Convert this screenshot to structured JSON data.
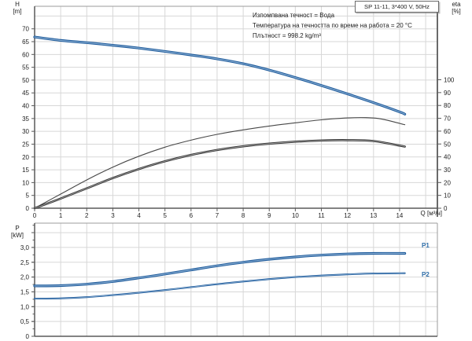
{
  "header": {
    "title": "SP 11-11, 3*400 V, 50Hz"
  },
  "annotations": [
    "Изпомпвана течност = Вода",
    "Температура на течността по време на работа = 20 °C",
    "Плътност = 998.2 kg/m³"
  ],
  "axes": {
    "h_symbol": "H",
    "h_unit": "[m]",
    "eta_symbol": "eta",
    "eta_unit": "[%]",
    "p_symbol": "P",
    "p_unit": "[kW]",
    "q_label": "Q [м³/ч]"
  },
  "colors": {
    "curve_blue": "#1d5a9b",
    "curve_blue_light": "#8fb2d4",
    "curve_black": "#333333",
    "curve_black_light": "#ababab",
    "grid": "#d7d7d7",
    "frame": "#9b9b9b",
    "axis_dark": "#5a5a5a",
    "text": "#222222",
    "label_blue": "#2d6da8"
  },
  "chart_data": [
    {
      "type": "line",
      "title": "SP 11-11, 3*400 V, 50Hz",
      "x_axis": {
        "label": "Q [м³/ч]",
        "tick_values": [
          0,
          1,
          2,
          3,
          4,
          5,
          6,
          7,
          8,
          9,
          10,
          11,
          12,
          13,
          14
        ],
        "grid_values": [
          1,
          2,
          3,
          4,
          5,
          6,
          7,
          8,
          9,
          10,
          11,
          12,
          13,
          14,
          15
        ],
        "range": [
          0,
          15.45
        ]
      },
      "y_left": {
        "label": "H [m]",
        "tick_values": [
          0,
          5,
          10,
          15,
          20,
          25,
          30,
          35,
          40,
          45,
          50,
          55,
          60,
          65,
          70
        ],
        "grid_values": [
          5,
          10,
          15,
          20,
          25,
          30,
          35,
          40,
          45,
          50,
          55,
          60,
          65,
          70,
          75
        ],
        "range": [
          0,
          78.8
        ]
      },
      "y_right": {
        "label": "eta [%]",
        "tick_values": [
          0,
          10,
          20,
          30,
          40,
          50,
          60,
          70,
          80,
          90,
          100
        ],
        "range": [
          0,
          157.2
        ]
      },
      "legend": "none",
      "series": [
        {
          "name": "H",
          "axis": "left",
          "style": "blue-thick",
          "points": [
            [
              0,
              66.8
            ],
            [
              1,
              65.5
            ],
            [
              2,
              64.6
            ],
            [
              3,
              63.6
            ],
            [
              4,
              62.5
            ],
            [
              5,
              61.2
            ],
            [
              6,
              59.8
            ],
            [
              7,
              58.3
            ],
            [
              8,
              56.4
            ],
            [
              9,
              53.9
            ],
            [
              10,
              51.0
            ],
            [
              11,
              47.9
            ],
            [
              12,
              44.6
            ],
            [
              13,
              41.2
            ],
            [
              14,
              37.6
            ],
            [
              14.2,
              36.7
            ]
          ]
        },
        {
          "name": "eta pump",
          "axis": "right",
          "style": "black-thin",
          "points": [
            [
              0,
              0
            ],
            [
              1,
              11
            ],
            [
              2,
              22
            ],
            [
              3,
              32
            ],
            [
              4,
              40.5
            ],
            [
              5,
              47.5
            ],
            [
              6,
              53
            ],
            [
              7,
              57.5
            ],
            [
              8,
              61
            ],
            [
              9,
              64
            ],
            [
              10,
              66.5
            ],
            [
              11,
              68.8
            ],
            [
              12,
              70.3
            ],
            [
              12.7,
              70.5
            ],
            [
              13.3,
              69.5
            ],
            [
              14.2,
              65
            ]
          ]
        },
        {
          "name": "eta pump motor",
          "axis": "right",
          "style": "black-thick",
          "points": [
            [
              0,
              0
            ],
            [
              1,
              7.5
            ],
            [
              2,
              15.5
            ],
            [
              3,
              23.5
            ],
            [
              4,
              30.5
            ],
            [
              5,
              36.5
            ],
            [
              6,
              41.5
            ],
            [
              7,
              45.3
            ],
            [
              8,
              48.2
            ],
            [
              9,
              50.3
            ],
            [
              10,
              51.8
            ],
            [
              11,
              52.7
            ],
            [
              12,
              53
            ],
            [
              13,
              52.3
            ],
            [
              14.2,
              48
            ]
          ]
        }
      ]
    },
    {
      "type": "line",
      "title": "",
      "x_axis": {
        "label": "",
        "grid_values": [
          1,
          2,
          3,
          4,
          5,
          6,
          7,
          8,
          9,
          10,
          11,
          12,
          13,
          14,
          15
        ],
        "range": [
          0,
          15.45
        ]
      },
      "y_left": {
        "label": "P [kW]",
        "tick_values": [
          0,
          0.5,
          1,
          1.5,
          2,
          2.5,
          3
        ],
        "tick_labels": [
          "0",
          "0,5",
          "1,0",
          "1,5",
          "2,0",
          "2,5",
          "3,0"
        ],
        "minor_step": 0.25,
        "grid_values": [
          0.5,
          1,
          1.5,
          2,
          2.5,
          3,
          3.5
        ],
        "range": [
          0,
          3.82
        ]
      },
      "series": [
        {
          "name": "P1",
          "label": "P1",
          "style": "blue-thick",
          "points": [
            [
              0,
              1.7
            ],
            [
              1,
              1.71
            ],
            [
              2,
              1.76
            ],
            [
              3,
              1.85
            ],
            [
              4,
              1.97
            ],
            [
              5,
              2.1
            ],
            [
              6,
              2.24
            ],
            [
              7,
              2.38
            ],
            [
              8,
              2.5
            ],
            [
              9,
              2.6
            ],
            [
              10,
              2.68
            ],
            [
              11,
              2.74
            ],
            [
              12,
              2.78
            ],
            [
              13,
              2.8
            ],
            [
              14.2,
              2.8
            ]
          ]
        },
        {
          "name": "P2",
          "label": "P2",
          "style": "blue-thin",
          "points": [
            [
              0,
              1.27
            ],
            [
              1,
              1.28
            ],
            [
              2,
              1.32
            ],
            [
              3,
              1.39
            ],
            [
              4,
              1.47
            ],
            [
              5,
              1.56
            ],
            [
              6,
              1.66
            ],
            [
              7,
              1.76
            ],
            [
              8,
              1.85
            ],
            [
              9,
              1.93
            ],
            [
              10,
              2.0
            ],
            [
              11,
              2.05
            ],
            [
              12,
              2.09
            ],
            [
              13,
              2.12
            ],
            [
              14.2,
              2.13
            ]
          ]
        }
      ]
    }
  ]
}
